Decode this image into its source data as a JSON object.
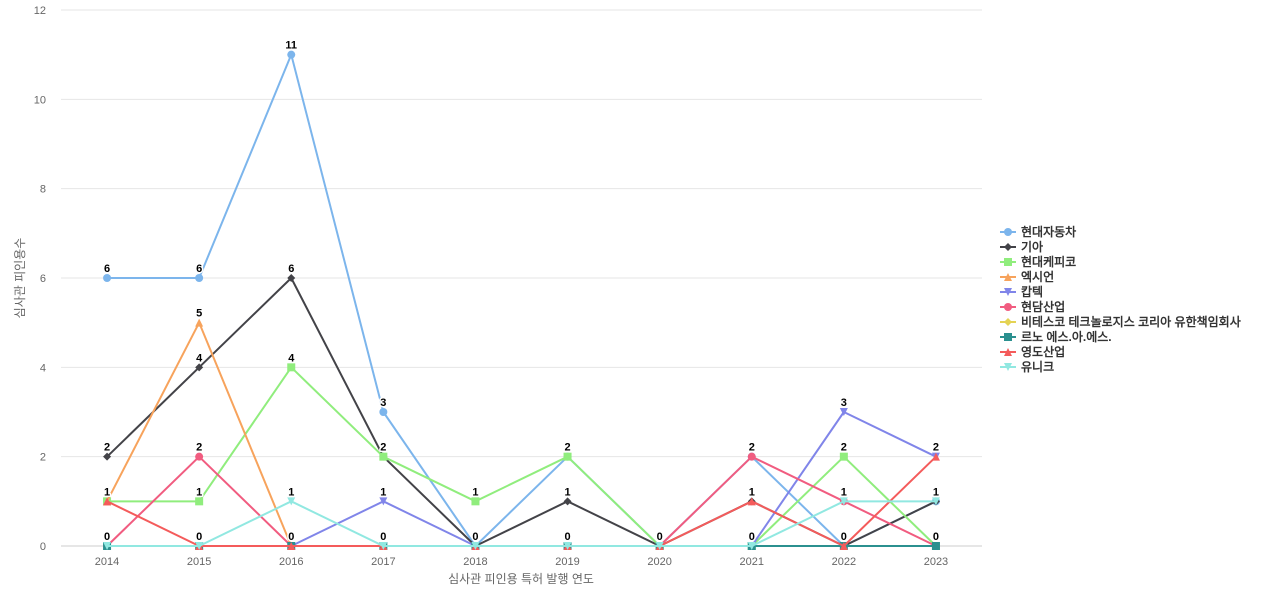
{
  "chart_data": {
    "type": "line",
    "title": "",
    "xlabel": "심사관 피인용 특허 발행 연도",
    "ylabel": "심사관 피인용수",
    "categories": [
      "2014",
      "2015",
      "2016",
      "2017",
      "2018",
      "2019",
      "2020",
      "2021",
      "2022",
      "2023"
    ],
    "ylim": [
      0,
      12
    ],
    "yticks": [
      0,
      2,
      4,
      6,
      8,
      10,
      12
    ],
    "grid": true,
    "legend_position": "right",
    "series": [
      {
        "name": "현대자동차",
        "color": "#7cb5ec",
        "marker": "circle",
        "values": [
          6,
          6,
          11,
          3,
          0,
          2,
          0,
          2,
          0,
          1
        ]
      },
      {
        "name": "기아",
        "color": "#434348",
        "marker": "diamond",
        "values": [
          2,
          4,
          6,
          2,
          0,
          1,
          0,
          1,
          0,
          1
        ]
      },
      {
        "name": "현대케피코",
        "color": "#90ed7d",
        "marker": "square",
        "values": [
          1,
          1,
          4,
          2,
          1,
          2,
          0,
          0,
          2,
          0
        ]
      },
      {
        "name": "엑시언",
        "color": "#f7a35c",
        "marker": "triangle",
        "values": [
          1,
          5,
          0,
          0,
          0,
          0,
          0,
          0,
          0,
          0
        ]
      },
      {
        "name": "캅텍",
        "color": "#8085e9",
        "marker": "triangle-down",
        "values": [
          0,
          0,
          0,
          1,
          0,
          0,
          0,
          0,
          3,
          2
        ]
      },
      {
        "name": "현담산업",
        "color": "#f15c80",
        "marker": "circle",
        "values": [
          0,
          2,
          0,
          0,
          0,
          0,
          0,
          2,
          1,
          0
        ]
      },
      {
        "name": "비테스코 테크놀로지스 코리아 유한책임회사",
        "color": "#e4d354",
        "marker": "diamond",
        "values": [
          0,
          0,
          0,
          0,
          0,
          0,
          0,
          0,
          0,
          0
        ]
      },
      {
        "name": "르노 에스.아.에스.",
        "color": "#2b908f",
        "marker": "square",
        "values": [
          0,
          0,
          0,
          0,
          0,
          0,
          0,
          0,
          0,
          0
        ]
      },
      {
        "name": "영도산업",
        "color": "#f45b5b",
        "marker": "triangle",
        "values": [
          1,
          0,
          0,
          0,
          0,
          0,
          0,
          1,
          0,
          2
        ]
      },
      {
        "name": "유니크",
        "color": "#91e8e1",
        "marker": "triangle-down",
        "values": [
          0,
          0,
          1,
          0,
          0,
          0,
          0,
          0,
          1,
          1
        ]
      }
    ],
    "data_labels": [
      {
        "series": 0,
        "index": 0,
        "text": "6"
      },
      {
        "series": 0,
        "index": 1,
        "text": "6"
      },
      {
        "series": 0,
        "index": 2,
        "text": "11"
      },
      {
        "series": 0,
        "index": 3,
        "text": "3"
      },
      {
        "series": 0,
        "index": 5,
        "text": "2"
      },
      {
        "series": 0,
        "index": 7,
        "text": "2"
      },
      {
        "series": 0,
        "index": 9,
        "text": "1"
      },
      {
        "series": 1,
        "index": 0,
        "text": "2"
      },
      {
        "series": 1,
        "index": 1,
        "text": "4"
      },
      {
        "series": 1,
        "index": 2,
        "text": "6"
      },
      {
        "series": 1,
        "index": 3,
        "text": "2"
      },
      {
        "series": 1,
        "index": 5,
        "text": "1"
      },
      {
        "series": 1,
        "index": 7,
        "text": "1"
      },
      {
        "series": 2,
        "index": 0,
        "text": "1"
      },
      {
        "series": 2,
        "index": 1,
        "text": "1"
      },
      {
        "series": 2,
        "index": 2,
        "text": "4"
      },
      {
        "series": 2,
        "index": 4,
        "text": "1"
      },
      {
        "series": 2,
        "index": 8,
        "text": "2"
      },
      {
        "series": 3,
        "index": 1,
        "text": "5"
      },
      {
        "series": 4,
        "index": 3,
        "text": "1"
      },
      {
        "series": 4,
        "index": 8,
        "text": "3"
      },
      {
        "series": 4,
        "index": 9,
        "text": "2"
      },
      {
        "series": 5,
        "index": 1,
        "text": "2"
      },
      {
        "series": 7,
        "index": 0,
        "text": "0"
      },
      {
        "series": 7,
        "index": 1,
        "text": "0"
      },
      {
        "series": 7,
        "index": 2,
        "text": "0"
      },
      {
        "series": 7,
        "index": 3,
        "text": "0"
      },
      {
        "series": 7,
        "index": 4,
        "text": "0"
      },
      {
        "series": 7,
        "index": 5,
        "text": "0"
      },
      {
        "series": 7,
        "index": 6,
        "text": "0"
      },
      {
        "series": 7,
        "index": 7,
        "text": "0"
      },
      {
        "series": 7,
        "index": 8,
        "text": "0"
      },
      {
        "series": 7,
        "index": 9,
        "text": "0"
      },
      {
        "series": 9,
        "index": 2,
        "text": "1"
      },
      {
        "series": 9,
        "index": 8,
        "text": "1"
      }
    ]
  }
}
